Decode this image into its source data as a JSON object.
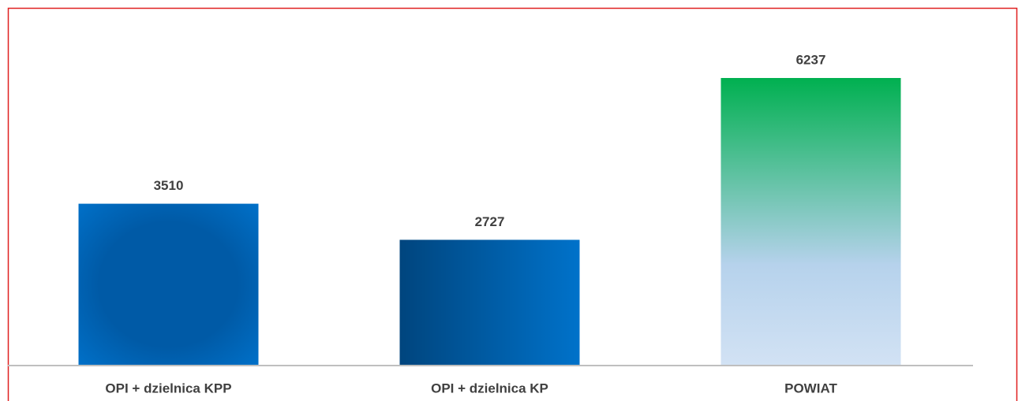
{
  "chart_data": {
    "type": "bar",
    "categories": [
      "OPI + dzielnica KPP",
      "OPI + dzielnica KP",
      "POWIAT"
    ],
    "values": [
      3510,
      2727,
      6237
    ],
    "colors": [
      [
        "#0070c8",
        "#005aa6"
      ],
      [
        "#00457e",
        "#0072ca"
      ],
      [
        "#00b050",
        "#b6d2ec",
        "#d2e2f4"
      ]
    ]
  }
}
